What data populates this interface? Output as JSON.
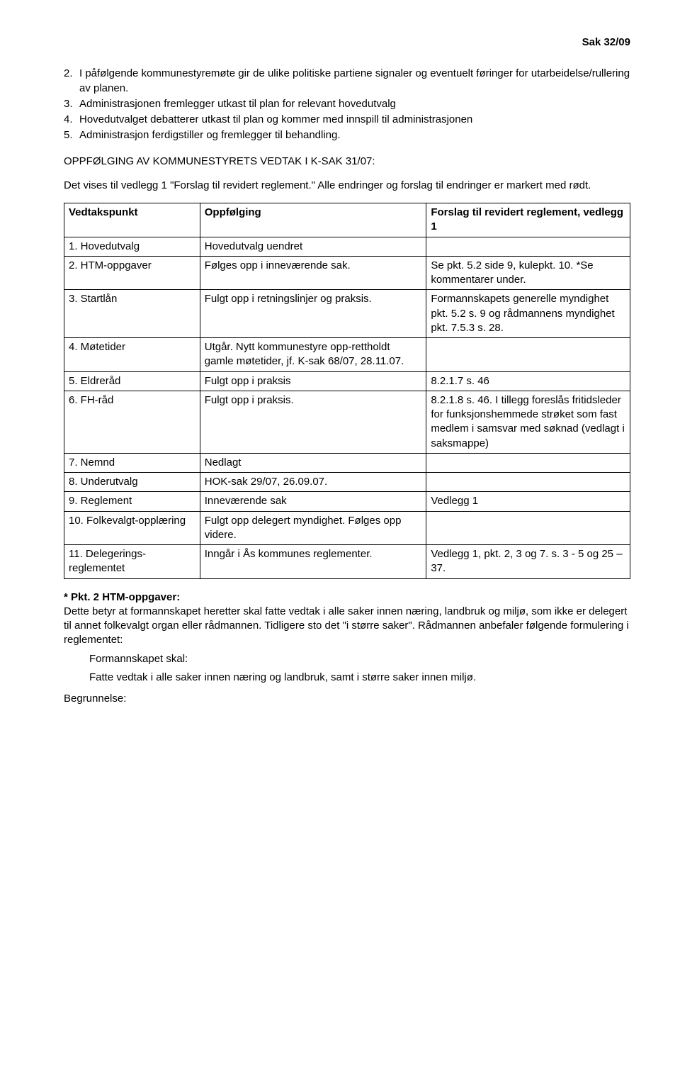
{
  "header": {
    "caseRef": "Sak 32/09"
  },
  "numberedItems": [
    {
      "num": "2.",
      "text": "I påfølgende kommunestyremøte gir de ulike politiske partiene signaler og eventuelt føringer for utarbeidelse/rullering av planen."
    },
    {
      "num": "3.",
      "text": "Administrasjonen fremlegger utkast til plan for relevant hovedutvalg"
    },
    {
      "num": "4.",
      "text": "Hovedutvalget debatterer utkast til plan og kommer med innspill til administrasjonen"
    },
    {
      "num": "5.",
      "text": "Administrasjon ferdigstiller og fremlegger til behandling."
    }
  ],
  "followUpHeading": "OPPFØLGING AV KOMMUNESTYRETS VEDTAK I K-SAK 31/07:",
  "introPara": "Det vises til vedlegg 1 \"Forslag til revidert reglement.\" Alle endringer og forslag til endringer er markert med rødt.",
  "table": {
    "columns": [
      "Vedtakspunkt",
      "Oppfølging",
      "Forslag til revidert reglement, vedlegg 1"
    ],
    "rows": [
      [
        "1.  Hovedutvalg",
        "Hovedutvalg uendret",
        ""
      ],
      [
        "2.  HTM-oppgaver",
        "Følges opp i inneværende sak.",
        "Se pkt. 5.2 side 9, kulepkt. 10. *Se kommentarer under."
      ],
      [
        "3.  Startlån",
        "Fulgt opp i retningslinjer og praksis.",
        "Formannskapets generelle myndighet pkt. 5.2 s. 9 og rådmannens myndighet pkt. 7.5.3 s. 28."
      ],
      [
        "4.  Møtetider",
        "Utgår. Nytt kommunestyre opp-rettholdt gamle møtetider, jf. K-sak 68/07, 28.11.07.",
        ""
      ],
      [
        "5.  Eldreråd",
        "Fulgt opp i praksis",
        "8.2.1.7 s. 46"
      ],
      [
        "6.  FH-råd",
        "Fulgt opp i praksis.",
        "8.2.1.8 s. 46. I tillegg foreslås fritidsleder for funksjonshemmede strøket som fast medlem i samsvar med søknad (vedlagt i saksmappe)"
      ],
      [
        "7.  Nemnd",
        "Nedlagt",
        ""
      ],
      [
        "8.  Underutvalg",
        "HOK-sak 29/07, 26.09.07.",
        ""
      ],
      [
        "9.  Reglement",
        "Inneværende sak",
        "Vedlegg 1"
      ],
      [
        "10. Folkevalgt-opplæring",
        "Fulgt opp delegert myndighet. Følges opp videre.",
        ""
      ],
      [
        "11. Delegerings-reglementet",
        "Inngår i Ås kommunes reglementer.",
        "Vedlegg 1, pkt. 2, 3 og 7. s. 3 - 5 og 25 – 37."
      ]
    ]
  },
  "footer": {
    "heading": "* Pkt. 2 HTM-oppgaver:",
    "para1": "Dette betyr at formannskapet heretter skal fatte vedtak i alle saker innen næring, landbruk og miljø, som ikke er delegert til annet folkevalgt organ eller rådmannen. Tidligere sto det \"i større saker\". Rådmannen anbefaler følgende formulering i reglementet:",
    "indent1": "Formannskapet skal:",
    "indent2": "Fatte vedtak i alle saker innen næring og landbruk, samt i større saker innen miljø.",
    "begrunn": "Begrunnelse:"
  }
}
